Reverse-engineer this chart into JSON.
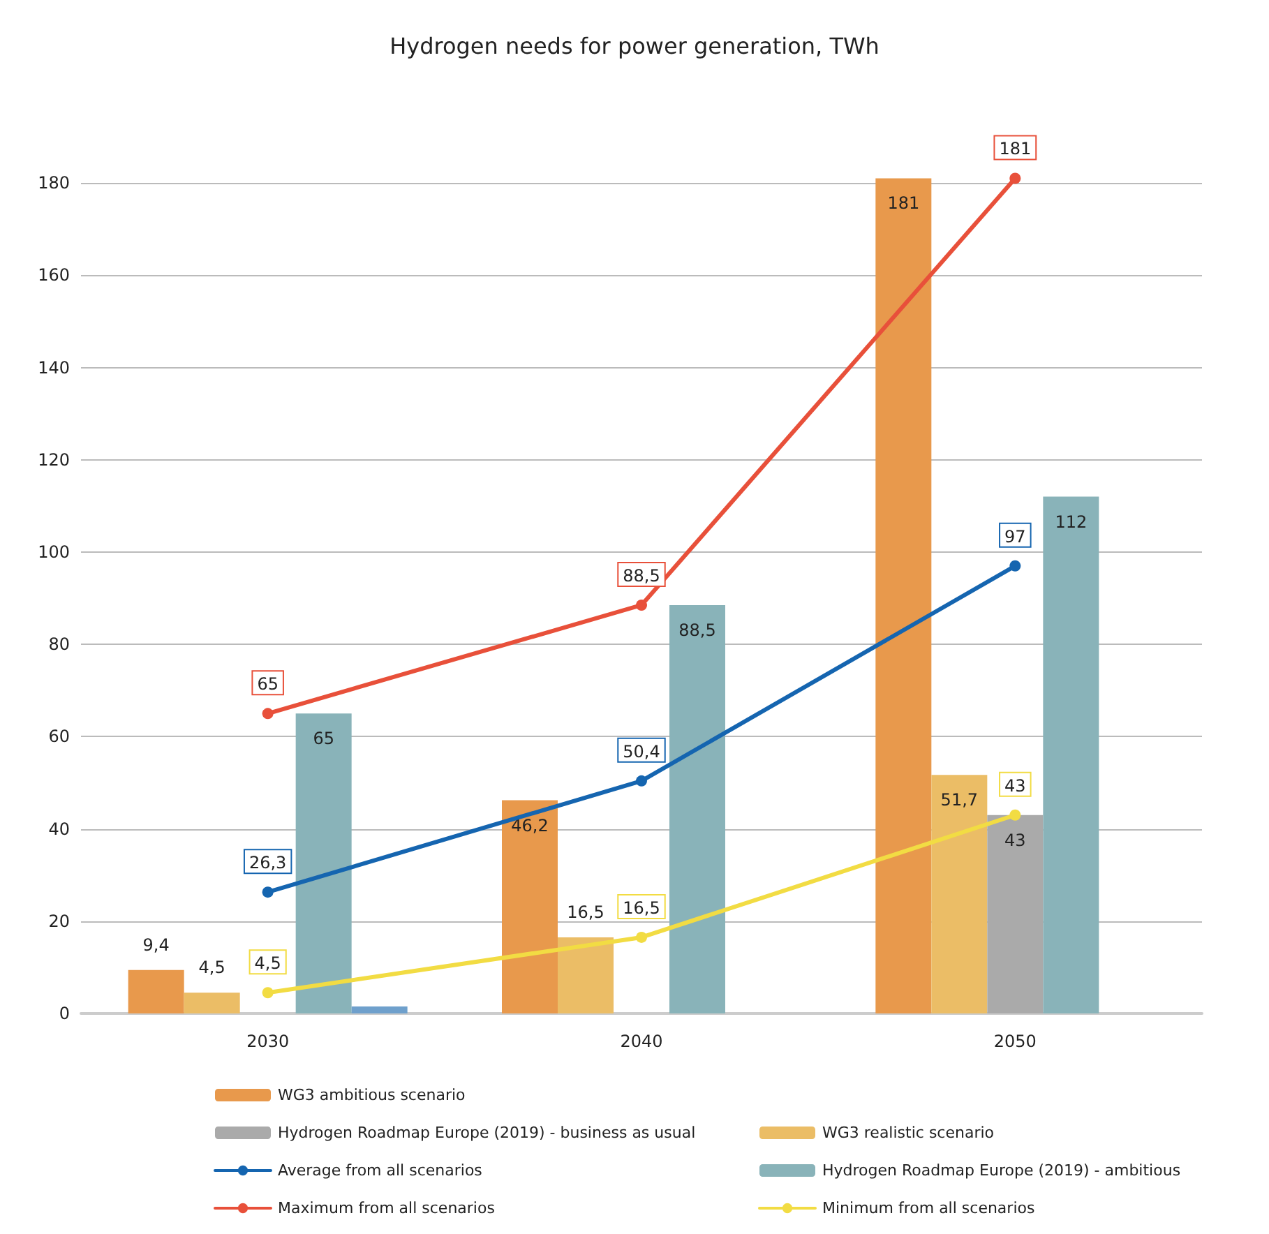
{
  "chart_data": {
    "type": "bar",
    "title": "Hydrogen needs for power generation, TWh",
    "categories": [
      "2030",
      "2040",
      "2050"
    ],
    "series": [
      {
        "name": "WG3 ambitious scenario",
        "color": "#e8994c",
        "values": [
          9.4,
          46.2,
          181
        ],
        "value_labels": [
          "9,4",
          "46,2",
          "181"
        ]
      },
      {
        "name": "WG3 realistic scenario",
        "color": "#ebbd66",
        "values": [
          4.5,
          16.5,
          51.7
        ],
        "value_labels": [
          "4,5",
          "16,5",
          "51,7"
        ]
      },
      {
        "name": "Hydrogen Roadmap Europe (2019) - business as usual",
        "color": "#aaaaaa",
        "values": [
          null,
          null,
          43
        ],
        "value_labels": [
          null,
          null,
          "43"
        ]
      },
      {
        "name": "Hydrogen Roadmap Europe (2019) - ambitious",
        "color": "#89b3b9",
        "values": [
          65,
          88.5,
          112
        ],
        "value_labels": [
          "65",
          "88,5",
          "112"
        ]
      },
      {
        "color": "#6fa0cc",
        "values": [
          1.5,
          null,
          null
        ]
      },
      {
        "name": "Average from all scenarios",
        "type": "line",
        "color": "#1565b0",
        "values": [
          26.3,
          50.4,
          97
        ],
        "value_labels": [
          "26,3",
          "50,4",
          "97"
        ]
      },
      {
        "name": "Minimum from all scenarios",
        "type": "line",
        "color": "#f2dc43",
        "values": [
          4.5,
          16.5,
          43
        ],
        "value_labels": [
          "4,5",
          "16,5",
          "43"
        ]
      },
      {
        "name": "Maximum from all scenarios",
        "type": "line",
        "color": "#e8503a",
        "values": [
          65,
          88.5,
          181
        ],
        "value_labels": [
          "65",
          "88,5",
          "181"
        ]
      }
    ],
    "ylim": [
      0,
      190
    ],
    "yticks": [
      0,
      20,
      40,
      60,
      80,
      100,
      120,
      140,
      160,
      180
    ],
    "grid": "y",
    "legend": "bottom",
    "marker": "circle"
  }
}
